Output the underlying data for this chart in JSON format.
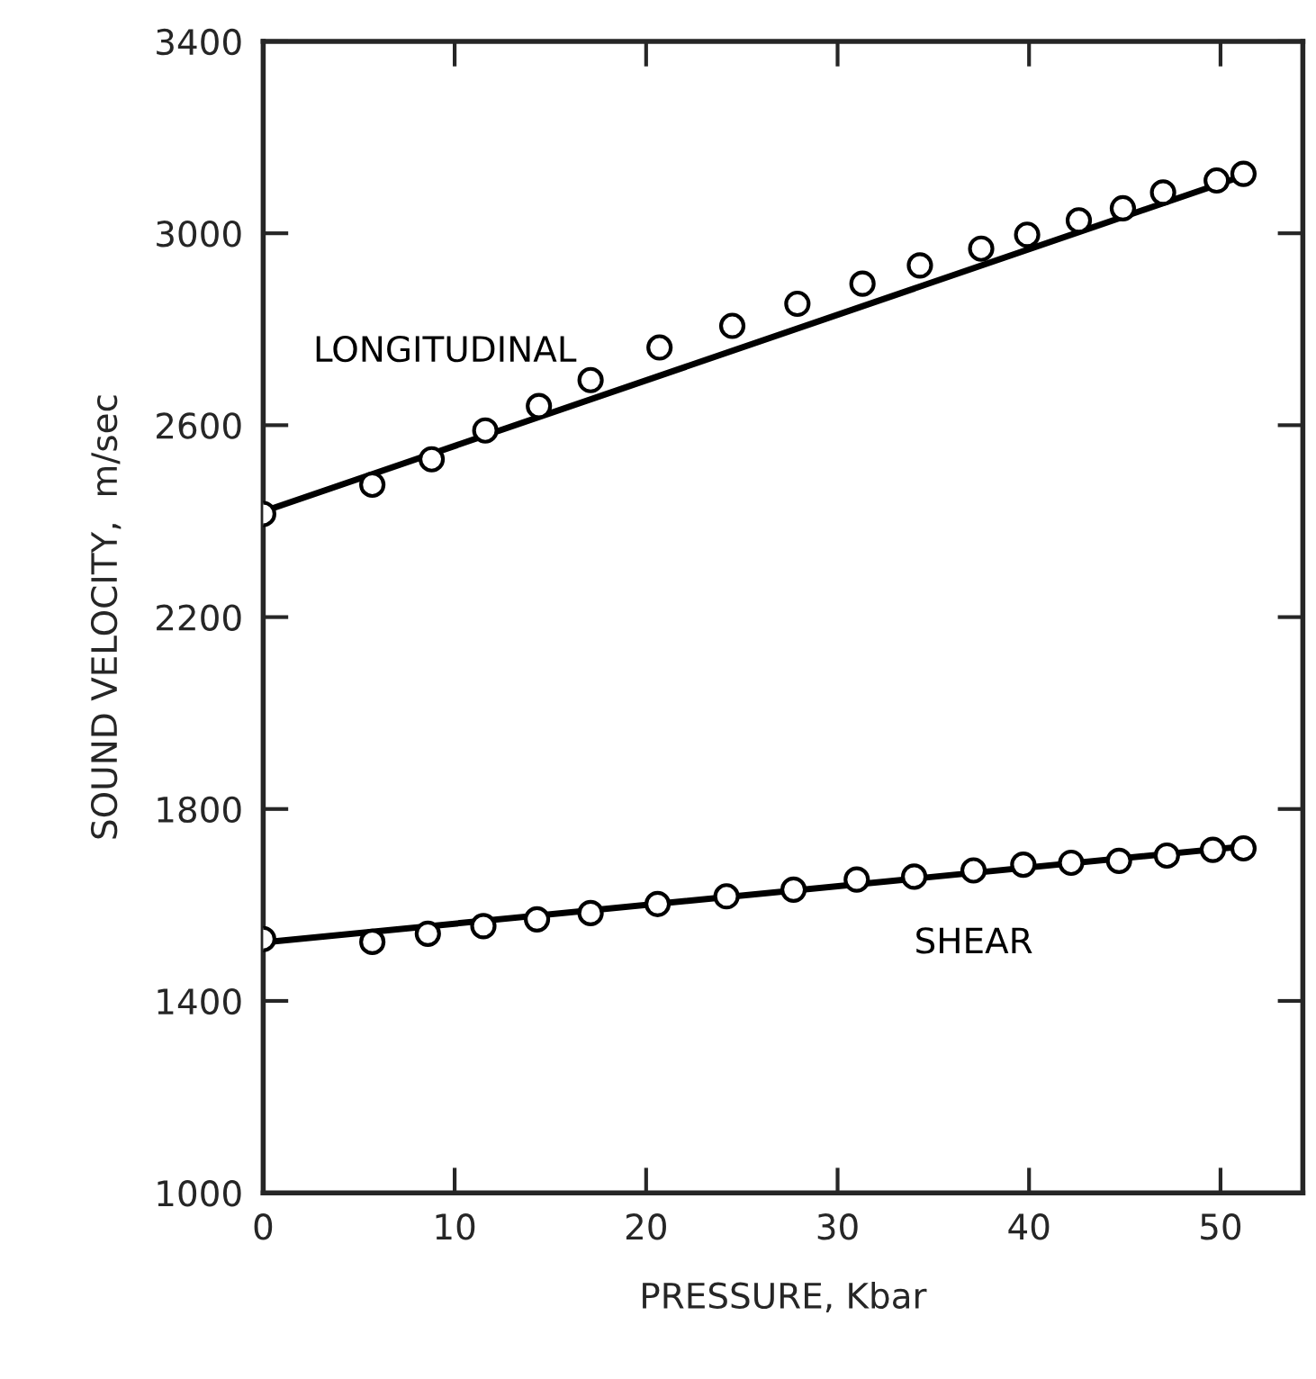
{
  "chart_data": {
    "type": "scatter",
    "xlabel": "PRESSURE, Kbar",
    "ylabel": "SOUND VELOCITY,  m/sec",
    "xlim": [
      0,
      54.3
    ],
    "xticks": [
      0,
      10,
      20,
      30,
      40,
      50
    ],
    "ylim": [
      1000,
      3400
    ],
    "yticks": [
      1000,
      1400,
      1800,
      2200,
      2600,
      3000,
      3400
    ],
    "grid": false,
    "legend": false,
    "marker": "circle",
    "series": [
      {
        "name": "LONGITUDINAL",
        "color": "#000000",
        "x": [
          0,
          5.7,
          8.8,
          11.6,
          14.4,
          17.1,
          20.7,
          24.5,
          27.9,
          31.3,
          34.3,
          37.5,
          39.9,
          42.6,
          44.9,
          47.0,
          49.8,
          51.2
        ],
        "values": [
          2415,
          2476,
          2529,
          2589,
          2640,
          2694,
          2762,
          2807,
          2853,
          2895,
          2933,
          2968,
          2997,
          3027,
          3052,
          3085,
          3110,
          3124
        ]
      },
      {
        "name": "SHEAR",
        "color": "#000000",
        "x": [
          0,
          5.7,
          8.6,
          11.5,
          14.3,
          17.1,
          20.6,
          24.2,
          27.7,
          31.0,
          34.0,
          37.1,
          39.7,
          42.2,
          44.7,
          47.2,
          49.6,
          51.2
        ],
        "values": [
          1529,
          1523,
          1540,
          1556,
          1570,
          1583,
          1602,
          1618,
          1632,
          1653,
          1659,
          1672,
          1684,
          1688,
          1692,
          1703,
          1715,
          1718
        ]
      },
      {
        "type": "line",
        "color": "#000000",
        "line_style": "solid",
        "marker": "none",
        "x": [
          0,
          51.2
        ],
        "values": [
          2420,
          3120
        ]
      },
      {
        "type": "line",
        "color": "#000000",
        "line_style": "solid",
        "marker": "none",
        "x": [
          0,
          51.2
        ],
        "values": [
          1522,
          1722
        ]
      }
    ]
  }
}
